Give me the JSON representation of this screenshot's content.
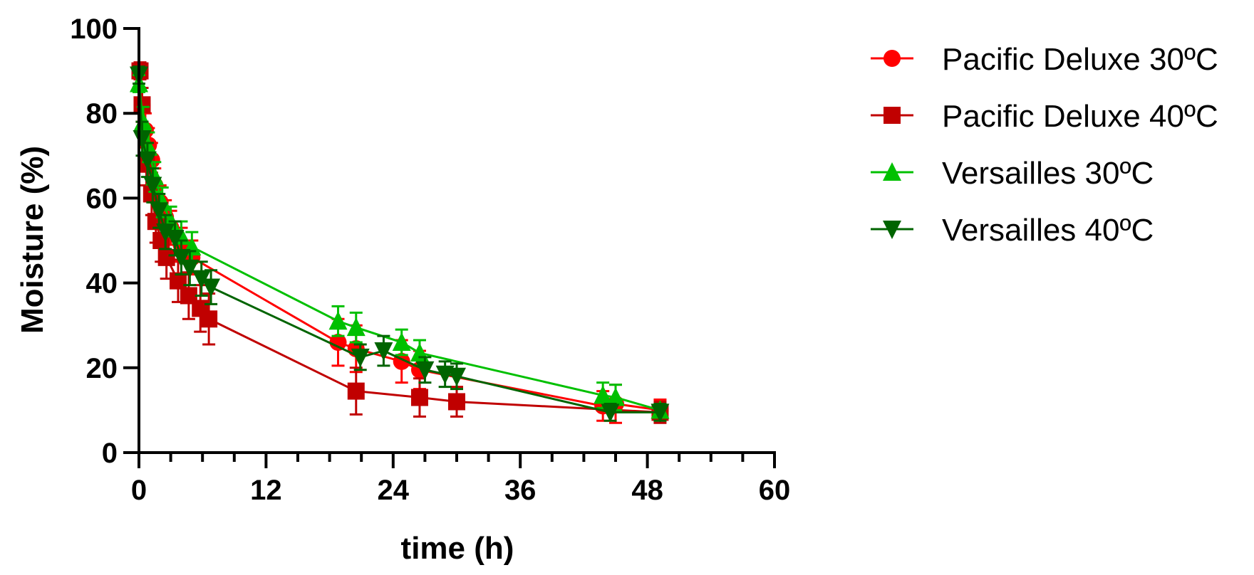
{
  "chart_data": {
    "type": "line",
    "title": "",
    "xlabel": "time (h)",
    "ylabel": "Moisture (%)",
    "xlim": [
      0,
      60
    ],
    "ylim": [
      0,
      100
    ],
    "xticks": [
      "0",
      "12",
      "24",
      "36",
      "48",
      "60"
    ],
    "yticks": [
      "0",
      "20",
      "40",
      "60",
      "80",
      "100"
    ],
    "legend_position": "top-right",
    "series": [
      {
        "name": "Pacific Deluxe 30ºC",
        "color": "#ff0000",
        "marker": "circle",
        "points": [
          {
            "x": 0.1,
            "y": 90.0,
            "err": 1.5
          },
          {
            "x": 0.3,
            "y": 82.0,
            "err": 4.0
          },
          {
            "x": 0.6,
            "y": 76.0,
            "err": 4.0
          },
          {
            "x": 0.9,
            "y": 72.5,
            "err": 4.0
          },
          {
            "x": 1.2,
            "y": 69.0,
            "err": 4.0
          },
          {
            "x": 1.5,
            "y": 63.0,
            "err": 4.0
          },
          {
            "x": 2.0,
            "y": 59.0,
            "err": 4.0
          },
          {
            "x": 2.5,
            "y": 55.5,
            "err": 4.0
          },
          {
            "x": 3.0,
            "y": 53.0,
            "err": 4.0
          },
          {
            "x": 4.0,
            "y": 49.0,
            "err": 4.0
          },
          {
            "x": 5.0,
            "y": 46.0,
            "err": 4.0
          },
          {
            "x": 18.8,
            "y": 26.0,
            "err": 5.5
          },
          {
            "x": 20.5,
            "y": 24.5,
            "err": 5.5
          },
          {
            "x": 24.8,
            "y": 21.5,
            "err": 5.0
          },
          {
            "x": 26.5,
            "y": 19.5,
            "err": 4.5
          },
          {
            "x": 43.8,
            "y": 11.0,
            "err": 3.5
          },
          {
            "x": 45.0,
            "y": 11.5,
            "err": 4.5
          },
          {
            "x": 49.2,
            "y": 10.0,
            "err": 2.5
          }
        ]
      },
      {
        "name": "Pacific Deluxe 40ºC",
        "color": "#c00000",
        "marker": "square",
        "points": [
          {
            "x": 0.1,
            "y": 90.0,
            "err": 2.0
          },
          {
            "x": 0.3,
            "y": 82.0,
            "err": 4.0
          },
          {
            "x": 0.7,
            "y": 68.0,
            "err": 5.0
          },
          {
            "x": 1.2,
            "y": 61.0,
            "err": 5.0
          },
          {
            "x": 1.6,
            "y": 54.5,
            "err": 5.0
          },
          {
            "x": 2.1,
            "y": 50.0,
            "err": 5.0
          },
          {
            "x": 2.6,
            "y": 46.0,
            "err": 5.0
          },
          {
            "x": 3.7,
            "y": 40.5,
            "err": 5.0
          },
          {
            "x": 4.7,
            "y": 37.0,
            "err": 5.5
          },
          {
            "x": 5.8,
            "y": 34.0,
            "err": 5.5
          },
          {
            "x": 6.6,
            "y": 31.5,
            "err": 6.0
          },
          {
            "x": 20.5,
            "y": 14.5,
            "err": 5.5
          },
          {
            "x": 26.5,
            "y": 13.0,
            "err": 4.5
          },
          {
            "x": 30.0,
            "y": 12.0,
            "err": 3.5
          },
          {
            "x": 49.2,
            "y": 9.5,
            "err": 2.5
          }
        ]
      },
      {
        "name": "Versailles 30ºC",
        "color": "#00c000",
        "marker": "triangle-up",
        "points": [
          {
            "x": 0.0,
            "y": 87.0,
            "err": 2.0
          },
          {
            "x": 0.4,
            "y": 78.0,
            "err": 3.5
          },
          {
            "x": 0.9,
            "y": 72.0,
            "err": 3.5
          },
          {
            "x": 1.5,
            "y": 65.0,
            "err": 3.5
          },
          {
            "x": 2.2,
            "y": 59.0,
            "err": 3.5
          },
          {
            "x": 3.0,
            "y": 54.5,
            "err": 3.5
          },
          {
            "x": 4.0,
            "y": 51.0,
            "err": 3.5
          },
          {
            "x": 5.0,
            "y": 48.5,
            "err": 3.5
          },
          {
            "x": 18.8,
            "y": 31.0,
            "err": 3.5
          },
          {
            "x": 20.5,
            "y": 29.5,
            "err": 3.5
          },
          {
            "x": 24.8,
            "y": 26.0,
            "err": 3.0
          },
          {
            "x": 26.5,
            "y": 23.5,
            "err": 3.0
          },
          {
            "x": 43.8,
            "y": 13.5,
            "err": 3.0
          },
          {
            "x": 45.0,
            "y": 13.0,
            "err": 3.0
          },
          {
            "x": 49.2,
            "y": 10.0,
            "err": 1.5
          }
        ]
      },
      {
        "name": "Versailles 40ºC",
        "color": "#006400",
        "marker": "triangle-down",
        "points": [
          {
            "x": 0.0,
            "y": 89.0,
            "err": 2.0
          },
          {
            "x": 0.3,
            "y": 74.0,
            "err": 4.0
          },
          {
            "x": 0.8,
            "y": 69.0,
            "err": 4.0
          },
          {
            "x": 1.3,
            "y": 63.0,
            "err": 4.0
          },
          {
            "x": 1.9,
            "y": 57.0,
            "err": 4.0
          },
          {
            "x": 2.5,
            "y": 52.0,
            "err": 4.0
          },
          {
            "x": 3.4,
            "y": 50.5,
            "err": 4.0
          },
          {
            "x": 4.0,
            "y": 46.0,
            "err": 4.0
          },
          {
            "x": 4.8,
            "y": 43.5,
            "err": 4.0
          },
          {
            "x": 5.9,
            "y": 41.0,
            "err": 4.0
          },
          {
            "x": 6.8,
            "y": 39.0,
            "err": 4.0
          },
          {
            "x": 20.9,
            "y": 22.5,
            "err": 3.0
          },
          {
            "x": 23.1,
            "y": 24.0,
            "err": 3.5
          },
          {
            "x": 27.0,
            "y": 19.5,
            "err": 3.0
          },
          {
            "x": 28.9,
            "y": 18.5,
            "err": 3.0
          },
          {
            "x": 30.0,
            "y": 18.0,
            "err": 3.0
          },
          {
            "x": 44.5,
            "y": 9.5,
            "err": 2.0
          },
          {
            "x": 49.2,
            "y": 9.5,
            "err": 2.0
          }
        ]
      }
    ]
  }
}
